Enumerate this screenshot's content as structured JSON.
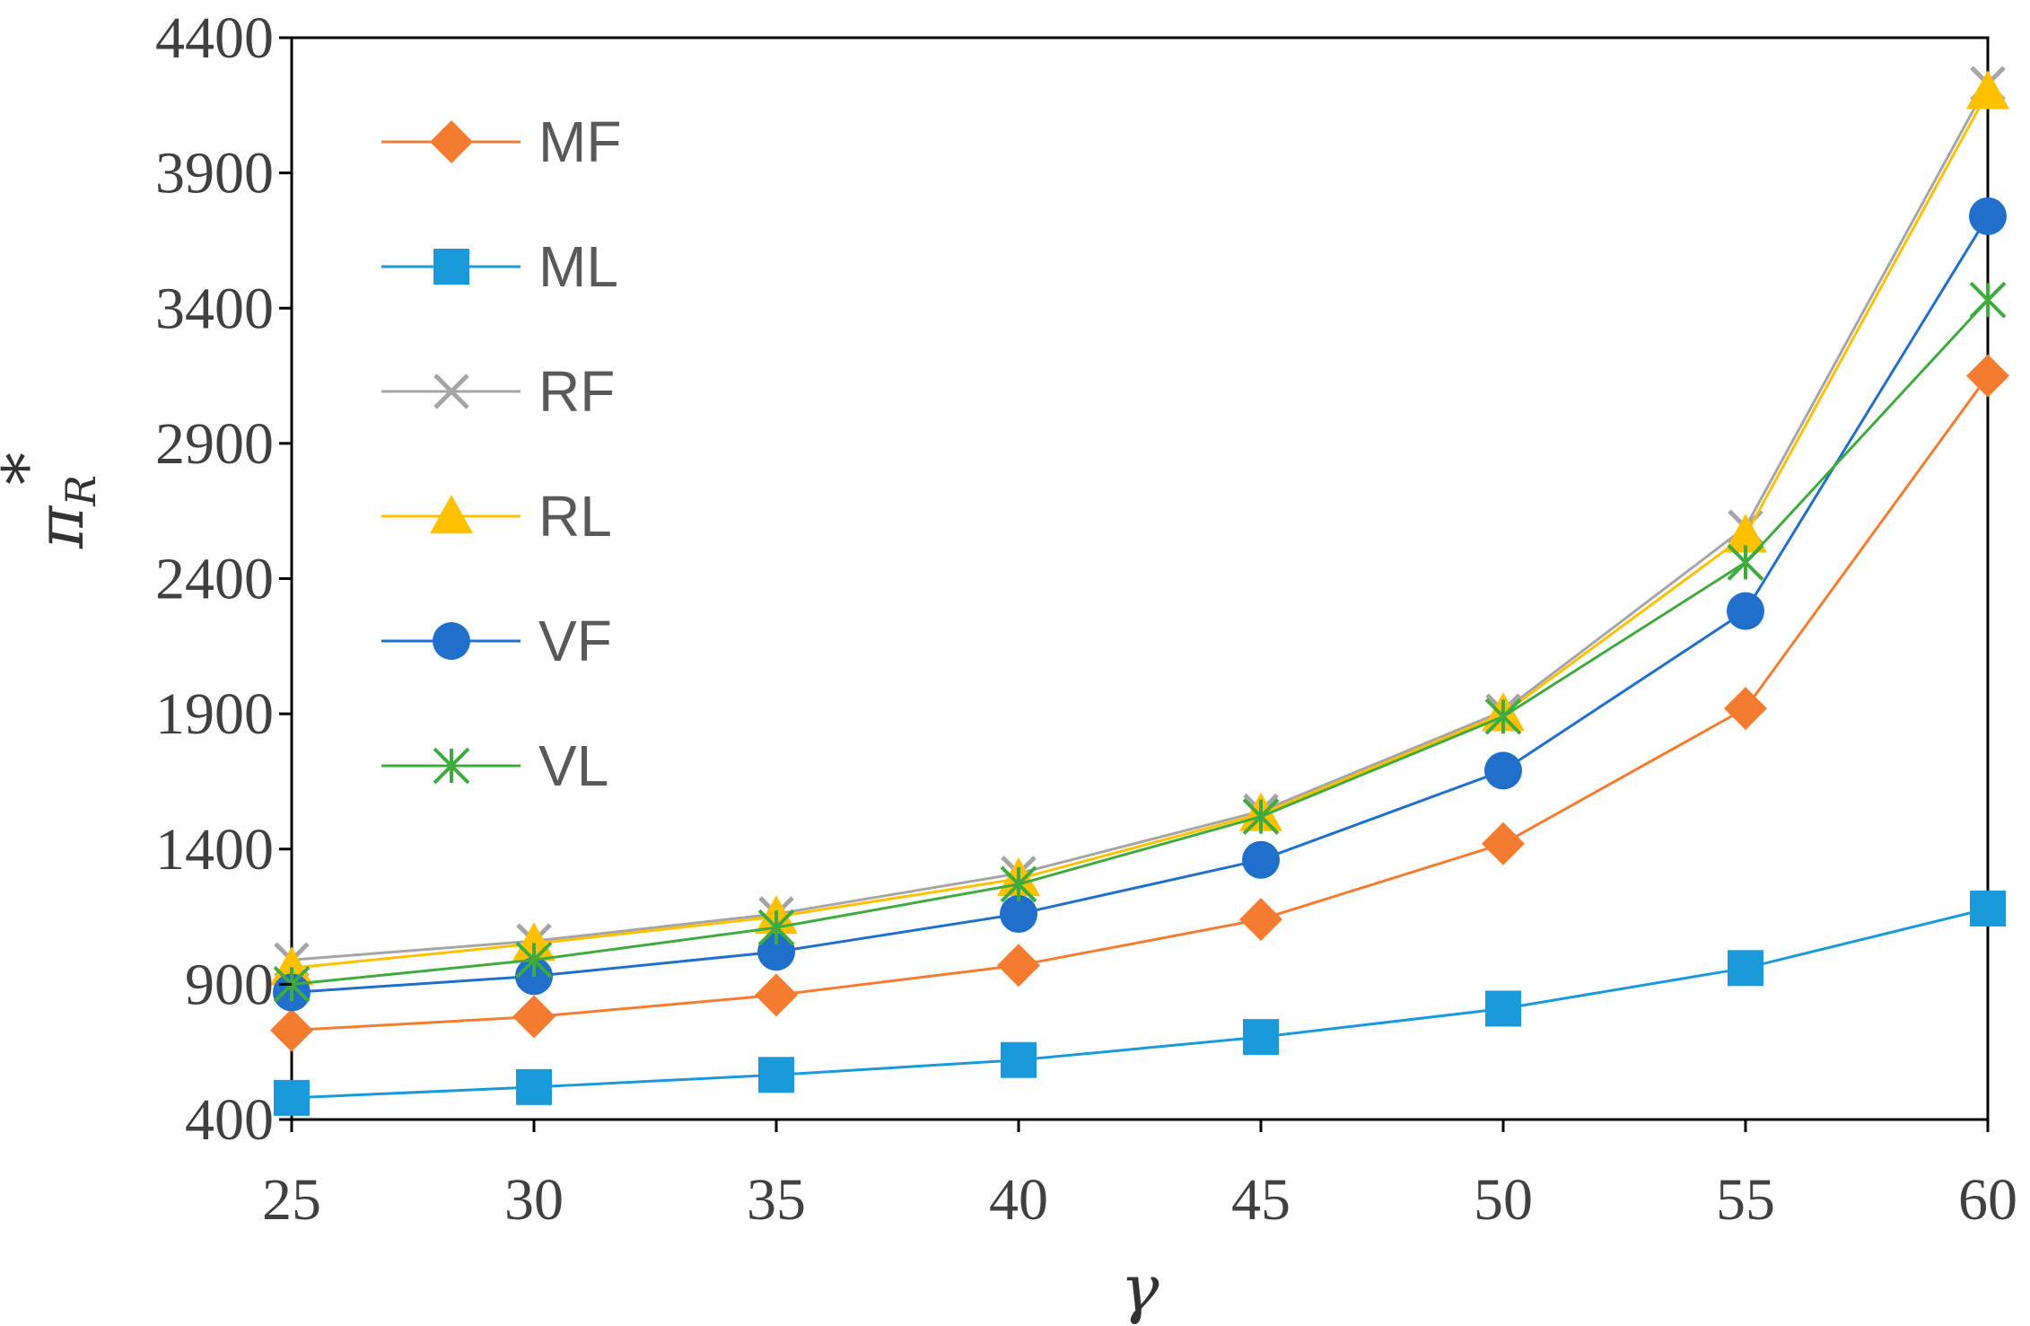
{
  "chart_data": {
    "type": "line",
    "title": "",
    "xlabel": "γ",
    "ylabel": "π",
    "ylabel_sub": "R",
    "ylabel_sup": "*",
    "x": [
      25,
      30,
      35,
      40,
      45,
      50,
      55,
      60
    ],
    "x_tick_labels": [
      "25",
      "30",
      "35",
      "40",
      "45",
      "50",
      "55",
      "60"
    ],
    "ylim": [
      400,
      4400
    ],
    "y_ticks": [
      400,
      900,
      1400,
      1900,
      2400,
      2900,
      3400,
      3900,
      4400
    ],
    "y_tick_labels": [
      "400",
      "900",
      "1400",
      "1900",
      "2400",
      "2900",
      "3400",
      "3900",
      "4400"
    ],
    "grid": false,
    "legend_position": "top-left",
    "series": [
      {
        "name": "MF",
        "color": "#F47C30",
        "marker": "diamond",
        "values": [
          730,
          780,
          860,
          970,
          1140,
          1420,
          1920,
          3150
        ]
      },
      {
        "name": "ML",
        "color": "#1A9ADB",
        "marker": "square",
        "values": [
          480,
          520,
          565,
          620,
          705,
          810,
          960,
          1180
        ]
      },
      {
        "name": "RF",
        "color": "#A5A5A5",
        "marker": "x",
        "values": [
          990,
          1060,
          1160,
          1310,
          1540,
          1910,
          2590,
          4230
        ]
      },
      {
        "name": "RL",
        "color": "#FFC000",
        "marker": "triangle",
        "values": [
          960,
          1050,
          1150,
          1290,
          1530,
          1900,
          2560,
          4200
        ]
      },
      {
        "name": "VF",
        "color": "#1F6FCB",
        "marker": "circle",
        "values": [
          870,
          930,
          1020,
          1160,
          1360,
          1690,
          2280,
          3740
        ]
      },
      {
        "name": "VL",
        "color": "#3FAB3F",
        "marker": "asterisk",
        "values": [
          900,
          990,
          1110,
          1270,
          1520,
          1890,
          2460,
          3430
        ]
      }
    ]
  }
}
